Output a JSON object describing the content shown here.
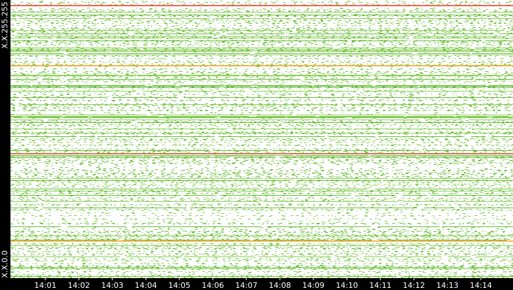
{
  "chart_data": {
    "type": "traffic-map",
    "x_labels": [
      "14:01",
      "14:02",
      "14:03",
      "14:04",
      "14:05",
      "14:06",
      "14:07",
      "14:08",
      "14:09",
      "14:10",
      "14:11",
      "14:12",
      "14:13",
      "14:14"
    ],
    "y_labels": [
      "X.X.0.0",
      "X.X.255.255"
    ]
  }
}
